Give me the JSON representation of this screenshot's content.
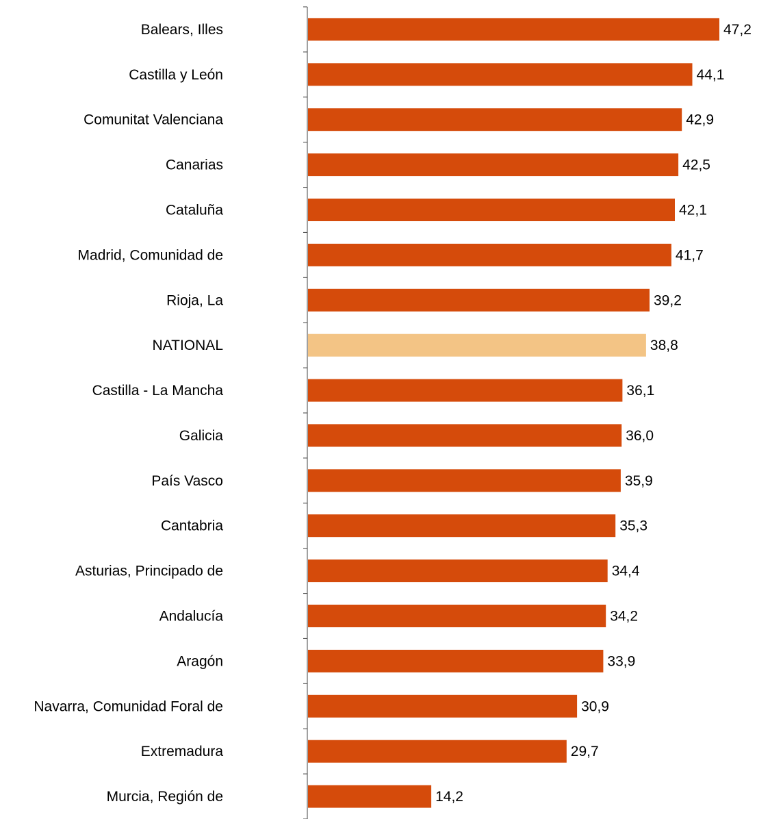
{
  "chart_data": {
    "type": "bar",
    "orientation": "horizontal",
    "categories": [
      "Balears, Illes",
      "Castilla y León",
      "Comunitat Valenciana",
      "Canarias",
      "Cataluña",
      "Madrid, Comunidad de",
      "Rioja, La",
      "NATIONAL",
      "Castilla - La Mancha",
      "Galicia",
      "País Vasco",
      "Cantabria",
      "Asturias, Principado de",
      "Andalucía",
      "Aragón",
      "Navarra, Comunidad Foral de",
      "Extremadura",
      "Murcia, Región de"
    ],
    "values": [
      47.2,
      44.1,
      42.9,
      42.5,
      42.1,
      41.7,
      39.2,
      38.8,
      36.1,
      36.0,
      35.9,
      35.3,
      34.4,
      34.2,
      33.9,
      30.9,
      29.7,
      14.2
    ],
    "value_labels": [
      "47,2",
      "44,1",
      "42,9",
      "42,5",
      "42,1",
      "41,7",
      "39,2",
      "38,8",
      "36,1",
      "36,0",
      "35,9",
      "35,3",
      "34,4",
      "34,2",
      "33,9",
      "30,9",
      "29,7",
      "14,2"
    ],
    "title": "",
    "xlabel": "",
    "ylabel": "",
    "xlim": [
      0,
      47.2
    ],
    "grid": false,
    "legend": "none",
    "colors": {
      "bar": "#D54B0B",
      "highlight_bar": "#F3C485",
      "axis": "#404040"
    },
    "highlight_category": "NATIONAL"
  }
}
